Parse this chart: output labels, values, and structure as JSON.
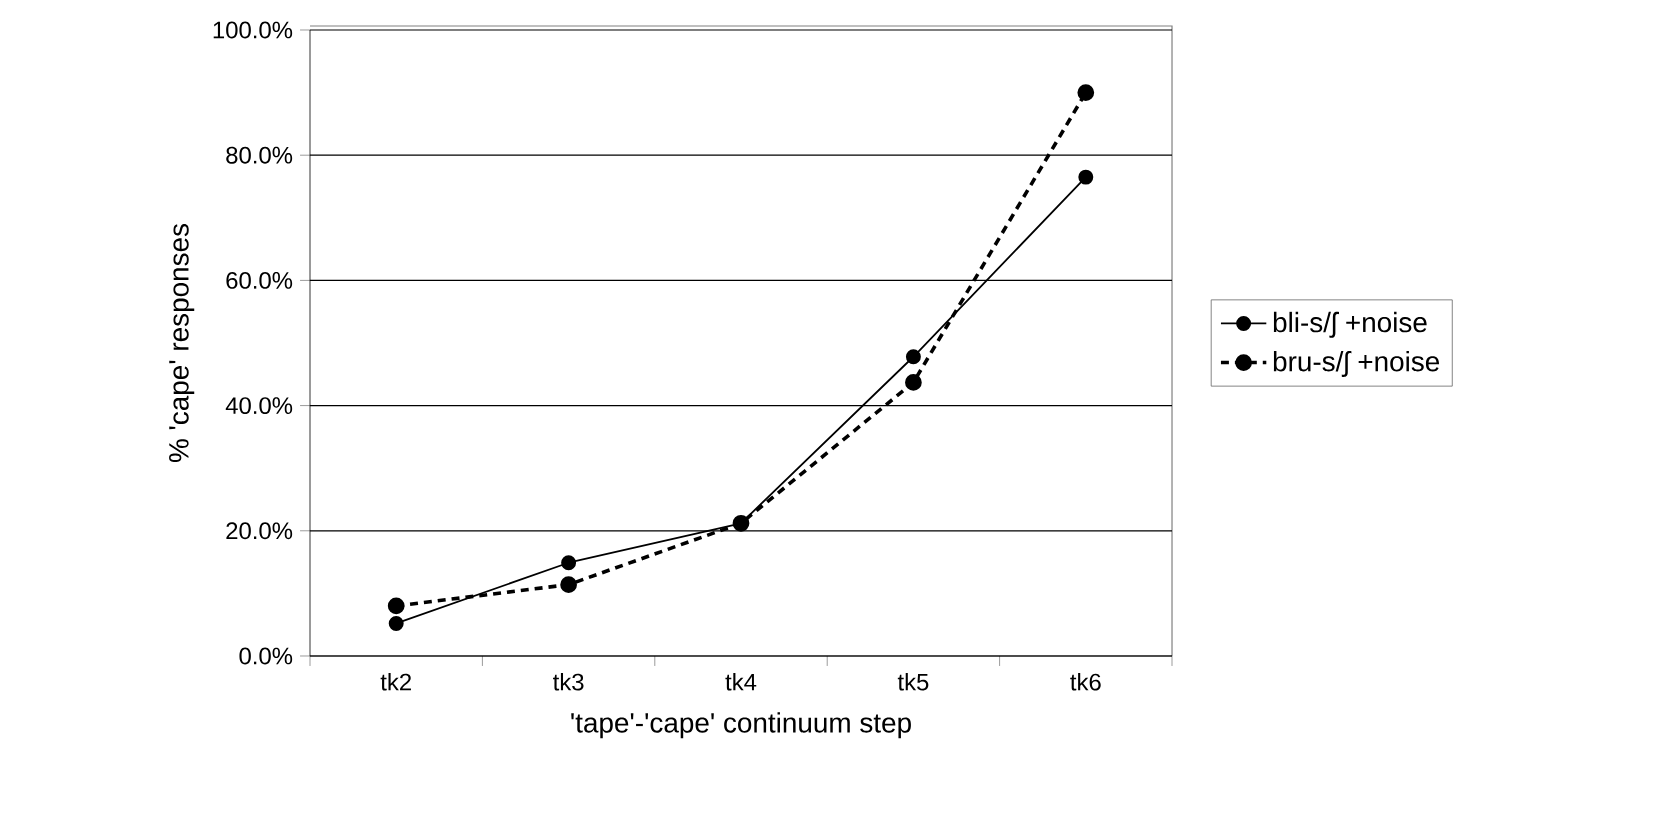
{
  "chart_data": {
    "type": "line",
    "xlabel": "'tape'-'cape' continuum step",
    "ylabel": "% 'cape' responses",
    "categories": [
      "tk2",
      "tk3",
      "tk4",
      "tk5",
      "tk6"
    ],
    "series": [
      {
        "name": "bli-s/ʃ +noise",
        "color": "#000000",
        "line_style": "solid",
        "values": [
          5.2,
          14.9,
          21.2,
          47.8,
          76.5
        ]
      },
      {
        "name": "bru-s/ʃ +noise",
        "color": "#000000",
        "line_style": "dashed",
        "values": [
          8.0,
          11.4,
          21.2,
          43.7,
          90.0
        ]
      }
    ],
    "ylim": [
      0,
      100
    ],
    "yticks": [
      {
        "value": 0,
        "label": "0.0%"
      },
      {
        "value": 20,
        "label": "20.0%"
      },
      {
        "value": 40,
        "label": "40.0%"
      },
      {
        "value": 60,
        "label": "60.0%"
      },
      {
        "value": 80,
        "label": "80.0%"
      },
      {
        "value": 100,
        "label": "100.0%"
      }
    ],
    "grid": "y",
    "legend": "right",
    "marker": "circle"
  }
}
